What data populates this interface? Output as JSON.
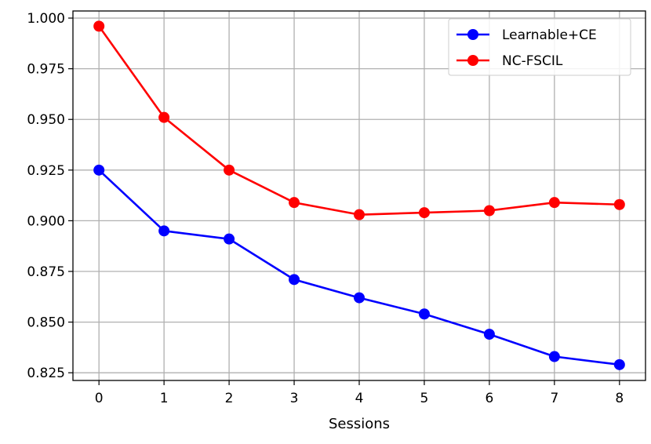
{
  "chart_data": {
    "type": "line",
    "title": "",
    "xlabel": "Sessions",
    "ylabel": "",
    "x": [
      0,
      1,
      2,
      3,
      4,
      5,
      6,
      7,
      8
    ],
    "xlim": [
      -0.4,
      8.4
    ],
    "ylim": [
      0.8212,
      1.0035
    ],
    "yticks": [
      0.825,
      0.85,
      0.875,
      0.9,
      0.925,
      0.95,
      0.975,
      1.0
    ],
    "ytick_labels": [
      "0.825",
      "0.850",
      "0.875",
      "0.900",
      "0.925",
      "0.950",
      "0.975",
      "1.000"
    ],
    "xtick_labels": [
      "0",
      "1",
      "2",
      "3",
      "4",
      "5",
      "6",
      "7",
      "8"
    ],
    "grid": true,
    "legend_position": "top-right",
    "series": [
      {
        "name": "Learnable+CE",
        "color": "#0000ff",
        "marker": "circle",
        "values": [
          0.925,
          0.895,
          0.891,
          0.871,
          0.862,
          0.854,
          0.844,
          0.833,
          0.829
        ]
      },
      {
        "name": "NC-FSCIL",
        "color": "#ff0000",
        "marker": "circle",
        "values": [
          0.996,
          0.951,
          0.925,
          0.909,
          0.903,
          0.904,
          0.905,
          0.909,
          0.908
        ]
      }
    ]
  }
}
